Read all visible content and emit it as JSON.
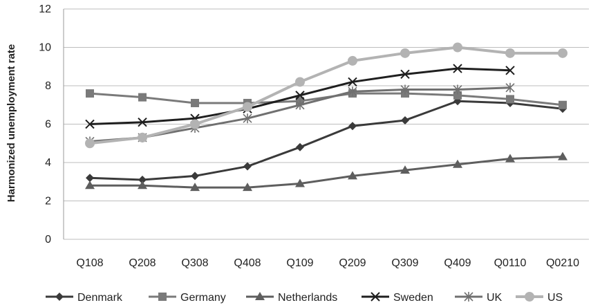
{
  "chart_data": {
    "type": "line",
    "title": "",
    "xlabel": "",
    "ylabel": "Harmonized unemployment rate",
    "categories": [
      "Q108",
      "Q208",
      "Q308",
      "Q408",
      "Q109",
      "Q209",
      "Q309",
      "Q409",
      "Q0110",
      "Q0210"
    ],
    "ylim": [
      0,
      12
    ],
    "yticks": [
      0,
      2,
      4,
      6,
      8,
      10,
      12
    ],
    "grid": "horizontal",
    "legend_position": "bottom",
    "series": [
      {
        "name": "Denmark",
        "marker": "diamond",
        "color": "#3a3a3a",
        "values": [
          3.2,
          3.1,
          3.3,
          3.8,
          4.8,
          5.9,
          6.2,
          7.2,
          7.1,
          6.8
        ]
      },
      {
        "name": "Germany",
        "marker": "square",
        "color": "#7a7a7a",
        "values": [
          7.6,
          7.4,
          7.1,
          7.1,
          7.2,
          7.6,
          7.6,
          7.5,
          7.3,
          7.0
        ]
      },
      {
        "name": "Netherlands",
        "marker": "triangle",
        "color": "#5e5e5e",
        "values": [
          2.8,
          2.8,
          2.7,
          2.7,
          2.9,
          3.3,
          3.6,
          3.9,
          4.2,
          4.3
        ]
      },
      {
        "name": "Sweden",
        "marker": "x",
        "color": "#1f1f1f",
        "values": [
          6.0,
          6.1,
          6.3,
          6.8,
          7.5,
          8.2,
          8.6,
          8.9,
          8.8,
          null
        ]
      },
      {
        "name": "UK",
        "marker": "star",
        "color": "#707070",
        "values": [
          5.1,
          5.3,
          5.8,
          6.3,
          7.0,
          7.7,
          7.8,
          7.8,
          7.9,
          null
        ]
      },
      {
        "name": "US",
        "marker": "circle",
        "color": "#b3b3b3",
        "values": [
          5.0,
          5.3,
          6.0,
          6.9,
          8.2,
          9.3,
          9.7,
          10.0,
          9.7,
          9.7
        ]
      }
    ]
  }
}
